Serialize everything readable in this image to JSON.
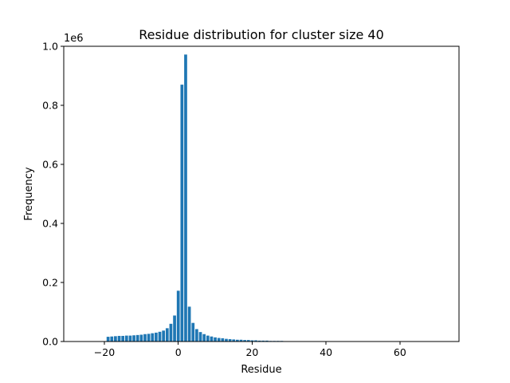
{
  "chart_data": {
    "type": "bar",
    "title": "Residue distribution for cluster size 40",
    "xlabel": "Residue",
    "ylabel": "Frequency",
    "y_offset_label": "1e6",
    "xlim": [
      -31,
      76
    ],
    "ylim": [
      0,
      1.0
    ],
    "x_ticks": [
      -20,
      0,
      20,
      40,
      60
    ],
    "x_tick_labels": [
      "−20",
      "0",
      "20",
      "40",
      "60"
    ],
    "y_ticks": [
      0.0,
      0.2,
      0.4,
      0.6,
      0.8,
      1.0
    ],
    "y_tick_labels": [
      "0.0",
      "0.2",
      "0.4",
      "0.6",
      "0.8",
      "1.0"
    ],
    "bar_color": "#1f77b4",
    "grid": false,
    "legend": "none",
    "x": [
      -20,
      -19,
      -18,
      -17,
      -16,
      -15,
      -14,
      -13,
      -12,
      -11,
      -10,
      -9,
      -8,
      -7,
      -6,
      -5,
      -4,
      -3,
      -2,
      -1,
      0,
      1,
      2,
      3,
      4,
      5,
      6,
      7,
      8,
      9,
      10,
      11,
      12,
      13,
      14,
      15,
      16,
      17,
      18,
      19,
      20,
      21,
      22,
      23,
      24,
      25,
      26,
      27,
      28,
      29,
      30,
      31,
      32,
      33,
      34,
      35,
      36,
      37,
      38,
      39,
      40,
      41,
      42,
      43,
      44,
      45
    ],
    "values": [
      0.001,
      0.016,
      0.017,
      0.018,
      0.019,
      0.019,
      0.02,
      0.02,
      0.021,
      0.022,
      0.023,
      0.025,
      0.026,
      0.028,
      0.03,
      0.033,
      0.037,
      0.045,
      0.06,
      0.088,
      0.172,
      0.87,
      0.972,
      0.118,
      0.063,
      0.042,
      0.032,
      0.025,
      0.02,
      0.017,
      0.014,
      0.012,
      0.011,
      0.009,
      0.008,
      0.007,
      0.006,
      0.006,
      0.005,
      0.005,
      0.004,
      0.004,
      0.003,
      0.003,
      0.003,
      0.002,
      0.002,
      0.002,
      0.002,
      0.001,
      0.001,
      0.001,
      0.001,
      0.001,
      0.001,
      0.001,
      0.001,
      0.0008,
      0.0007,
      0.0006,
      0.0005,
      0.0005,
      0.0004,
      0.0004,
      0.0003,
      0.0003
    ]
  }
}
